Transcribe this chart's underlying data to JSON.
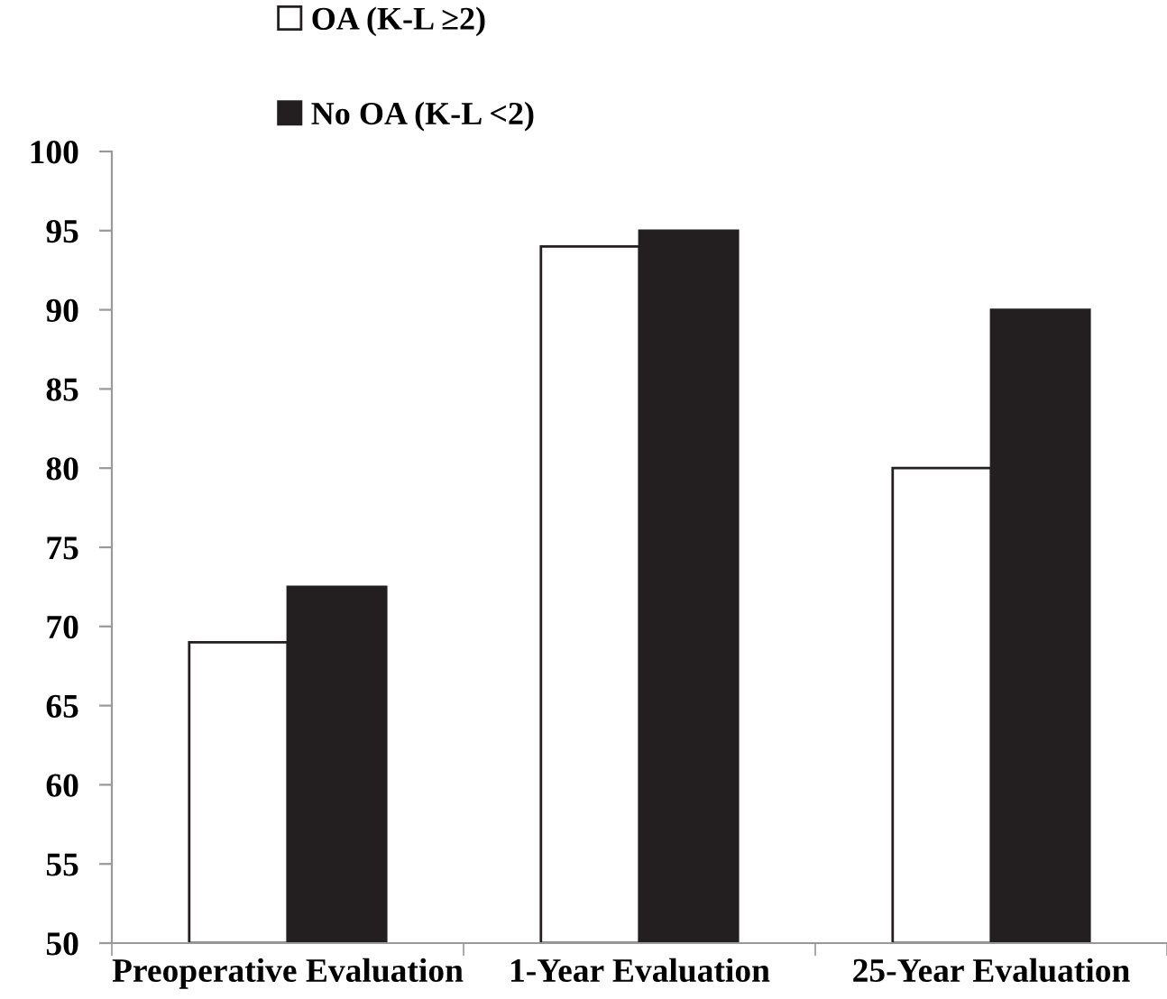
{
  "chart_data": {
    "type": "bar",
    "categories": [
      "Preoperative Evaluation",
      "1-Year Evaluation",
      "25-Year Evaluation"
    ],
    "series": [
      {
        "name": "OA (K-L ≥2)",
        "color": "#ffffff",
        "values": [
          69,
          94,
          80
        ]
      },
      {
        "name": "No OA (K-L <2)",
        "color": "#231f20",
        "values": [
          72.5,
          95,
          90
        ]
      }
    ],
    "ylim": [
      50,
      100
    ],
    "yticks": [
      50,
      55,
      60,
      65,
      70,
      75,
      80,
      85,
      90,
      95,
      100
    ],
    "grid": false,
    "legend": "top left"
  }
}
